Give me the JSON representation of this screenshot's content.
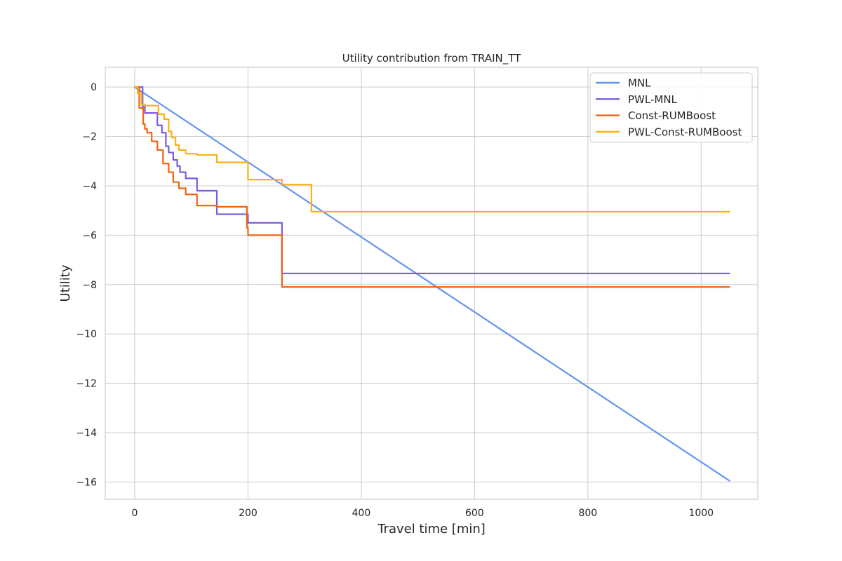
{
  "chart_data": {
    "type": "line",
    "title": "Utility contribution from TRAIN_TT",
    "xlabel": "Travel time [min]",
    "ylabel": "Utility",
    "xlim": [
      -52,
      1100
    ],
    "ylim": [
      -16.7,
      0.8
    ],
    "xticks": [
      0,
      200,
      400,
      600,
      800,
      1000
    ],
    "yticks": [
      0,
      -2,
      -4,
      -6,
      -8,
      -10,
      -12,
      -14,
      -16
    ],
    "grid": true,
    "legend_position": "top-right",
    "series": [
      {
        "name": "MNL",
        "color": "#6495ED",
        "x": [
          0,
          1050
        ],
        "y": [
          0,
          -15.95
        ]
      },
      {
        "name": "PWL-MNL",
        "color": "#7B5CE0",
        "x": [
          0,
          14,
          14,
          18,
          18,
          40,
          40,
          48,
          48,
          55,
          55,
          60,
          60,
          68,
          68,
          75,
          75,
          80,
          80,
          90,
          90,
          110,
          110,
          145,
          145,
          200,
          200,
          260,
          260,
          312,
          312,
          1050
        ],
        "y": [
          0,
          0,
          -0.8,
          -0.8,
          -1.05,
          -1.05,
          -1.55,
          -1.55,
          -1.85,
          -1.85,
          -2.4,
          -2.4,
          -2.65,
          -2.65,
          -2.95,
          -2.95,
          -3.2,
          -3.2,
          -3.45,
          -3.45,
          -3.7,
          -3.7,
          -4.2,
          -4.2,
          -5.15,
          -5.15,
          -5.5,
          -5.5,
          -7.55,
          -7.55,
          -7.55,
          -7.55
        ]
      },
      {
        "name": "Const-RUMBoost",
        "color": "#F06410",
        "x": [
          0,
          8,
          8,
          15,
          15,
          18,
          18,
          22,
          22,
          30,
          30,
          40,
          40,
          50,
          50,
          60,
          60,
          68,
          68,
          78,
          78,
          90,
          90,
          110,
          110,
          145,
          145,
          198,
          198,
          200,
          200,
          260,
          260,
          312,
          312,
          1050
        ],
        "y": [
          0,
          0,
          -0.85,
          -0.85,
          -1.5,
          -1.5,
          -1.7,
          -1.7,
          -1.85,
          -1.85,
          -2.2,
          -2.2,
          -2.55,
          -2.55,
          -3.1,
          -3.1,
          -3.45,
          -3.45,
          -3.85,
          -3.85,
          -4.1,
          -4.1,
          -4.35,
          -4.35,
          -4.8,
          -4.8,
          -4.85,
          -4.85,
          -5.7,
          -5.7,
          -6.0,
          -6.0,
          -8.1,
          -8.1,
          -8.1,
          -8.1
        ]
      },
      {
        "name": "PWL-Const-RUMBoost",
        "color": "#FBB014",
        "x": [
          0,
          5,
          5,
          12,
          12,
          18,
          18,
          42,
          42,
          52,
          52,
          60,
          60,
          65,
          65,
          72,
          72,
          78,
          78,
          90,
          90,
          110,
          110,
          145,
          145,
          200,
          200,
          260,
          260,
          312,
          312,
          1050
        ],
        "y": [
          0,
          0,
          -0.25,
          -0.25,
          -0.7,
          -0.7,
          -0.75,
          -0.75,
          -1.1,
          -1.1,
          -1.3,
          -1.3,
          -1.8,
          -1.8,
          -2.05,
          -2.05,
          -2.35,
          -2.35,
          -2.55,
          -2.55,
          -2.7,
          -2.7,
          -2.75,
          -2.75,
          -3.05,
          -3.05,
          -3.75,
          -3.75,
          -3.95,
          -3.95,
          -5.05,
          -5.05
        ]
      }
    ]
  }
}
